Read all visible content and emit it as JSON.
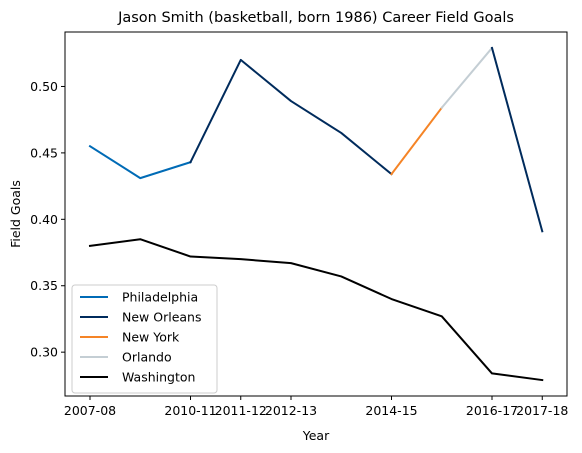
{
  "chart_data": {
    "type": "line",
    "title": "Jason Smith (basketball, born 1986) Career Field Goals",
    "xlabel": "Year",
    "ylabel": "Field Goals",
    "x": [
      "2007-08",
      "2009-10",
      "2010-11",
      "2011-12",
      "2012-13",
      "2013-14",
      "2014-15",
      "2015-16",
      "2016-17",
      "2017-18"
    ],
    "x_tick_labels": [
      "2007-08",
      "2010-11",
      "2011-12",
      "2012-13",
      "2014-15",
      "2016-17",
      "2017-18"
    ],
    "ylim": [
      0.267,
      0.541
    ],
    "y_ticks": [
      0.3,
      0.35,
      0.4,
      0.45,
      0.5
    ],
    "y_tick_labels": [
      "0.30",
      "0.35",
      "0.40",
      "0.45",
      "0.50"
    ],
    "grid": false,
    "legend_position": "lower-left",
    "series": [
      {
        "name": "Philadelphia",
        "color": "#006bb6",
        "points": [
          [
            "2007-08",
            0.455
          ],
          [
            "2009-10",
            0.431
          ],
          [
            "2010-11",
            0.443
          ]
        ]
      },
      {
        "name": "New Orleans",
        "color": "#002b5c",
        "points": [
          [
            "2010-11",
            0.443
          ],
          [
            "2011-12",
            0.52
          ],
          [
            "2012-13",
            0.489
          ],
          [
            "2013-14",
            0.465
          ],
          [
            "2014-15",
            0.434
          ]
        ]
      },
      {
        "name": "New York",
        "color": "#f58426",
        "points": [
          [
            "2014-15",
            0.434
          ],
          [
            "2015-16",
            0.484
          ]
        ]
      },
      {
        "name": "Orlando",
        "color": "#c4ced4",
        "points": [
          [
            "2015-16",
            0.484
          ],
          [
            "2016-17",
            0.529
          ]
        ]
      },
      {
        "name": "New Orleans",
        "color": "#002b5c",
        "points": [
          [
            "2016-17",
            0.529
          ],
          [
            "2017-18",
            0.391
          ]
        ],
        "in_legend": false
      },
      {
        "name": "Washington",
        "color": "#000000",
        "points": [
          [
            "2007-08",
            0.38
          ],
          [
            "2009-10",
            0.385
          ],
          [
            "2010-11",
            0.372
          ],
          [
            "2011-12",
            0.37
          ],
          [
            "2012-13",
            0.367
          ],
          [
            "2013-14",
            0.357
          ],
          [
            "2014-15",
            0.34
          ],
          [
            "2015-16",
            0.327
          ],
          [
            "2016-17",
            0.284
          ],
          [
            "2017-18",
            0.279
          ]
        ]
      }
    ]
  }
}
